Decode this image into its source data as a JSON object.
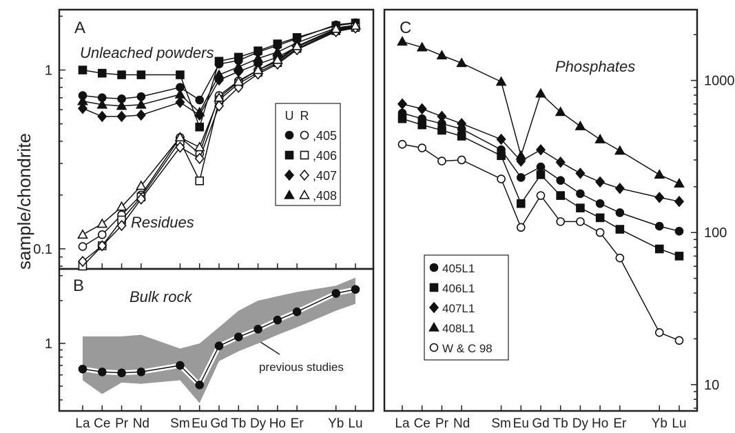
{
  "figure": {
    "ylabel": "sample/chondrite",
    "elements": [
      "La",
      "Ce",
      "Pr",
      "Nd",
      "Sm",
      "Eu",
      "Gd",
      "Tb",
      "Dy",
      "Ho",
      "Er",
      "Yb",
      "Lu"
    ],
    "element_positions": [
      1,
      2,
      3,
      4,
      6,
      7,
      8,
      9,
      10,
      11,
      12,
      14,
      15
    ]
  },
  "chart_data": [
    {
      "panel": "A",
      "type": "line",
      "yscale": "log",
      "ylim": [
        0.08,
        2.1
      ],
      "yticks": [
        {
          "value": 1,
          "label": "1"
        },
        {
          "value": 0.1,
          "label": "0.1"
        }
      ],
      "annotations": [
        "Unleached powders",
        "Residues"
      ],
      "legend": {
        "headers": [
          "U",
          "R"
        ],
        "entries": [
          ",405",
          ",406",
          ",407",
          ",408"
        ]
      },
      "series": [
        {
          "name": ",405",
          "group": "U",
          "marker": "circle",
          "filled": true,
          "values": [
            0.72,
            0.7,
            0.69,
            0.71,
            null,
            0.8,
            0.68,
            1.08,
            1.13,
            1.26,
            1.37,
            1.5,
            1.79,
            1.84
          ]
        },
        {
          "name": ",406",
          "group": "U",
          "marker": "square",
          "filled": true,
          "values": [
            1.0,
            0.96,
            0.94,
            0.94,
            null,
            0.94,
            0.48,
            1.12,
            1.18,
            1.28,
            1.4,
            1.52,
            1.77,
            1.83
          ]
        },
        {
          "name": ",407",
          "group": "U",
          "marker": "diamond",
          "filled": true,
          "values": [
            0.61,
            0.55,
            0.55,
            0.56,
            null,
            0.66,
            0.56,
            0.88,
            0.98,
            1.08,
            1.18,
            1.35,
            1.68,
            1.74
          ]
        },
        {
          "name": ",408",
          "group": "U",
          "marker": "triangle",
          "filled": true,
          "values": [
            0.67,
            0.64,
            0.63,
            0.64,
            null,
            0.73,
            0.58,
            0.94,
            1.04,
            1.16,
            1.26,
            1.42,
            1.72,
            1.78
          ]
        },
        {
          "name": ",405",
          "group": "R",
          "marker": "circle",
          "filled": false,
          "values": [
            0.103,
            0.12,
            0.155,
            0.2,
            null,
            0.42,
            0.34,
            0.72,
            0.87,
            1.0,
            1.12,
            1.35,
            1.68,
            1.75
          ]
        },
        {
          "name": ",406",
          "group": "R",
          "marker": "square",
          "filled": false,
          "values": [
            0.08,
            0.104,
            0.145,
            0.195,
            null,
            0.4,
            0.24,
            0.68,
            0.84,
            0.97,
            1.1,
            1.32,
            1.66,
            1.73
          ]
        },
        {
          "name": ",407",
          "group": "R",
          "marker": "diamond",
          "filled": false,
          "values": [
            0.085,
            0.104,
            0.135,
            0.19,
            null,
            0.37,
            0.32,
            0.63,
            0.8,
            0.95,
            1.08,
            1.3,
            1.64,
            1.72
          ]
        },
        {
          "name": ",408",
          "group": "R",
          "marker": "triangle",
          "filled": false,
          "values": [
            0.12,
            0.138,
            0.172,
            0.225,
            null,
            0.42,
            0.37,
            0.7,
            0.86,
            1.0,
            1.14,
            1.36,
            1.7,
            1.77
          ]
        }
      ]
    },
    {
      "panel": "B",
      "type": "line",
      "yscale": "log",
      "ylim": [
        0.35,
        3.2
      ],
      "yticks": [
        {
          "value": 1,
          "label": "1"
        }
      ],
      "annotations": [
        "Bulk rock",
        "previous studies"
      ],
      "band": {
        "upper": [
          1.12,
          1.12,
          1.12,
          1.15,
          null,
          0.92,
          1.0,
          1.3,
          1.7,
          2.0,
          2.15,
          2.3,
          2.55,
          2.9
        ],
        "lower": [
          0.55,
          0.44,
          0.53,
          0.52,
          null,
          0.55,
          0.38,
          0.75,
          0.88,
          1.0,
          1.15,
          1.3,
          1.7,
          1.9
        ]
      },
      "series": [
        {
          "name": "Bulk rock",
          "marker": "circle",
          "filled": true,
          "values": [
            0.66,
            0.63,
            0.62,
            0.63,
            null,
            0.7,
            0.51,
            0.96,
            1.11,
            1.26,
            1.46,
            1.67,
            2.25,
            2.4
          ]
        }
      ]
    },
    {
      "panel": "C",
      "type": "line",
      "yscale": "log",
      "ylim": [
        7,
        2800
      ],
      "yticks": [
        {
          "value": 1000,
          "label": "1000"
        },
        {
          "value": 100,
          "label": "100"
        },
        {
          "value": 10,
          "label": "10"
        }
      ],
      "annotations": [
        "Phosphates"
      ],
      "legend": {
        "entries": [
          "405L1",
          "406L1",
          "407L1",
          "408L1",
          "W & C 98"
        ]
      },
      "series": [
        {
          "name": "405L1",
          "marker": "circle",
          "filled": true,
          "values": [
            610,
            560,
            520,
            480,
            null,
            350,
            230,
            270,
            220,
            180,
            155,
            135,
            110,
            102
          ]
        },
        {
          "name": "406L1",
          "marker": "square",
          "filled": true,
          "values": [
            560,
            510,
            470,
            430,
            null,
            320,
            155,
            240,
            175,
            145,
            125,
            105,
            78,
            70
          ]
        },
        {
          "name": "407L1",
          "marker": "diamond",
          "filled": true,
          "values": [
            700,
            650,
            580,
            520,
            null,
            410,
            295,
            350,
            290,
            245,
            215,
            195,
            170,
            160
          ]
        },
        {
          "name": "408L1",
          "marker": "triangle",
          "filled": true,
          "values": [
            1800,
            1650,
            1460,
            1300,
            null,
            980,
            320,
            820,
            620,
            500,
            410,
            345,
            240,
            210
          ]
        },
        {
          "name": "W & C 98",
          "marker": "circle",
          "filled": false,
          "values": [
            380,
            360,
            295,
            300,
            null,
            225,
            108,
            175,
            118,
            118,
            100,
            68,
            22,
            19.5
          ]
        }
      ]
    }
  ]
}
